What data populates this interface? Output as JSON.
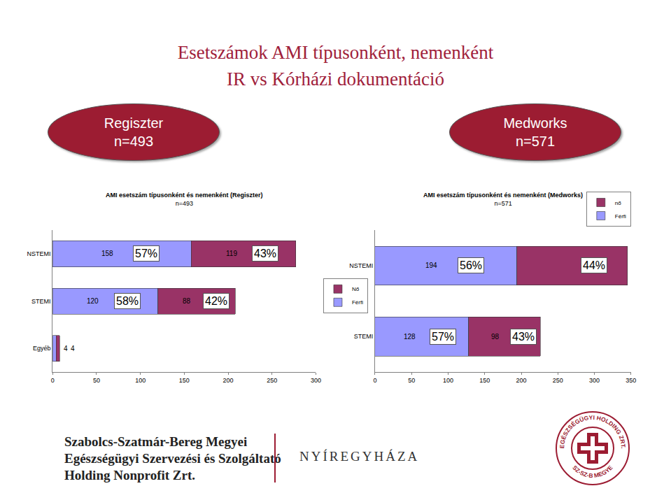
{
  "header": {
    "title": [
      "Esetszámok AMI típusonként, nemenként",
      "IR vs Kórházi dokumentáció"
    ],
    "sources": [
      {
        "name": "Regiszter",
        "n": "n=493"
      },
      {
        "name": "Medworks",
        "n": "n=571"
      }
    ]
  },
  "chart_data": [
    {
      "type": "bar",
      "title": "AMI esetszám típusonként és nemenként (Regiszter)",
      "subtitle": "n=493",
      "orientation": "horizontal",
      "stacked": true,
      "data_labels": true,
      "grid": false,
      "legend": "right",
      "categories": [
        "NSTEMI",
        "STEMI",
        "Egyéb"
      ],
      "series": [
        {
          "name": "Férfi",
          "color": "#9999ff",
          "values": [
            158,
            120,
            4
          ],
          "share_labels": [
            "57%",
            "58%",
            null
          ]
        },
        {
          "name": "Nő",
          "color": "#993366",
          "values": [
            119,
            88,
            4
          ],
          "share_labels": [
            "43%",
            "42%",
            null
          ]
        }
      ],
      "xlim": [
        0,
        300
      ],
      "xticks": [
        0,
        50,
        100,
        150,
        200,
        250,
        300
      ]
    },
    {
      "type": "bar",
      "title": "AMI esetszám típusonként és nemenként (Medworks)",
      "subtitle": "n=571",
      "orientation": "horizontal",
      "stacked": true,
      "data_labels": true,
      "grid": false,
      "legend": "top right",
      "categories": [
        "NSTEMI",
        "STEMI"
      ],
      "series": [
        {
          "name": "Férfi",
          "color": "#9999ff",
          "values": [
            194,
            128
          ],
          "value_labels": [
            "194",
            "128"
          ],
          "share_labels": [
            "56%",
            "57%"
          ]
        },
        {
          "name": "nő",
          "color": "#993366",
          "values": [
            151,
            98
          ],
          "value_labels": [
            null,
            "98"
          ],
          "share_labels": [
            "44%",
            "43%"
          ]
        }
      ],
      "xlim": [
        0,
        350
      ],
      "xticks": [
        0,
        50,
        100,
        150,
        200,
        250,
        300,
        350
      ]
    }
  ],
  "footer": {
    "organization": [
      "Szabolcs-Szatmár-Bereg Megyei",
      "Egészségügyi Szervezési és Szolgáltató",
      "Holding Nonprofit Zrt."
    ],
    "city": "NYÍREGYHÁZA",
    "logo": [
      "EGÉSZSÉGÜGYI HOLDING ZRT.",
      "SZ-SZ-B MEGYE"
    ]
  }
}
